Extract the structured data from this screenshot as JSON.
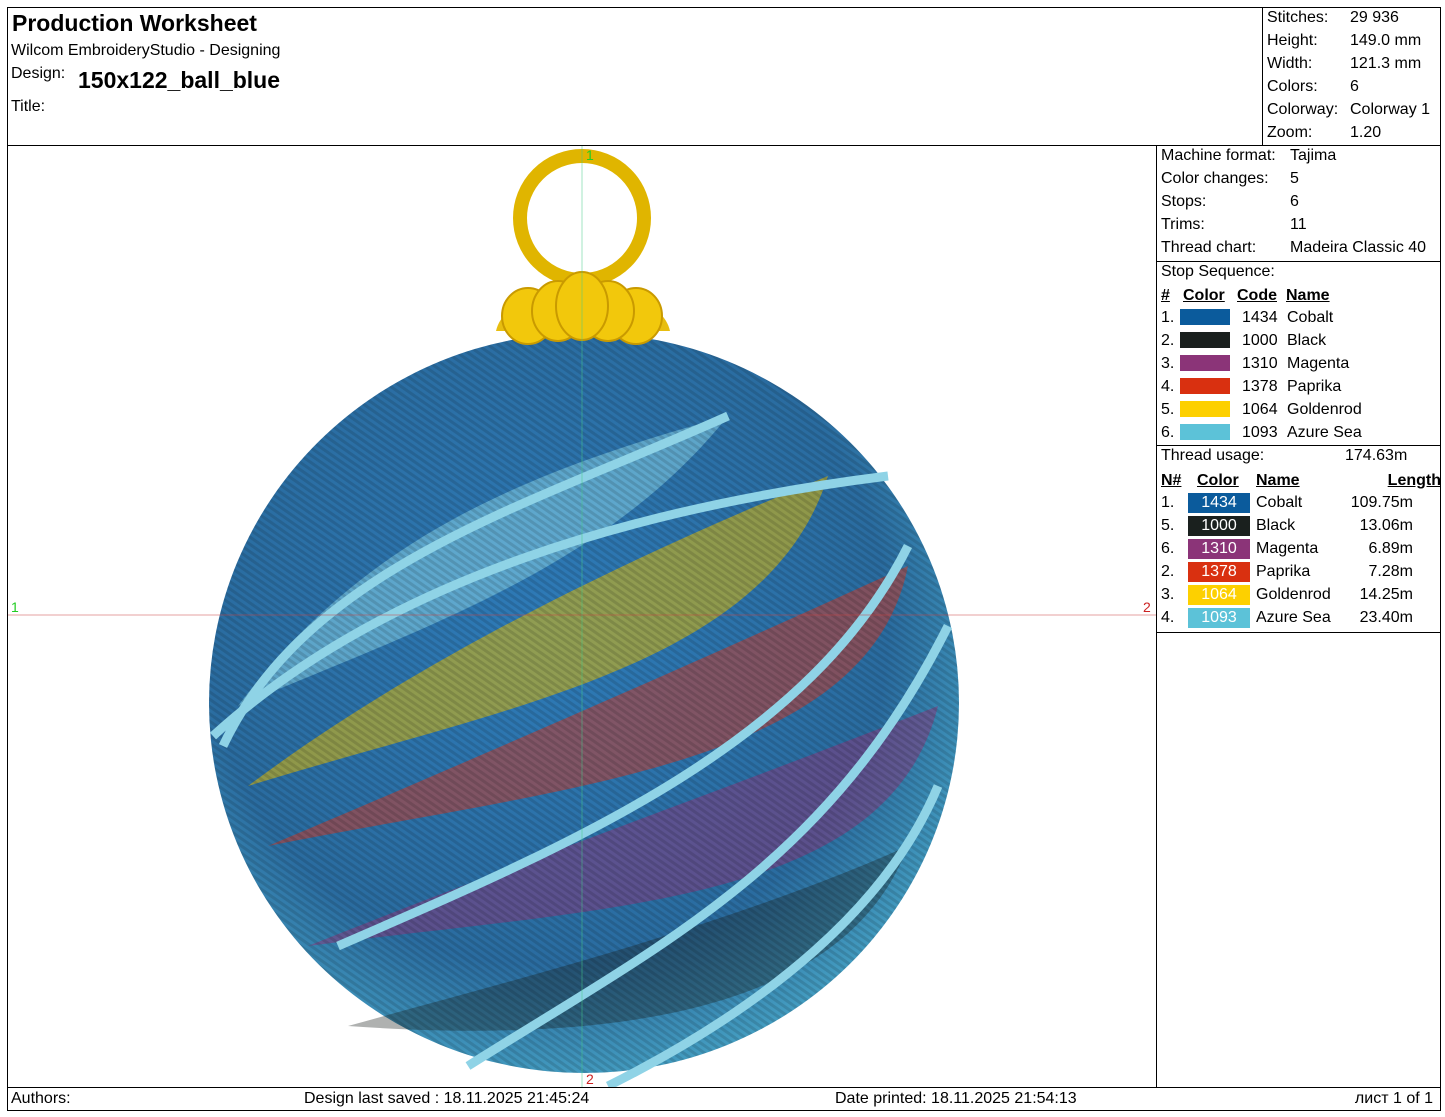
{
  "header": {
    "title": "Production Worksheet",
    "software": "Wilcom EmbroideryStudio - Designing",
    "design_label": "Design:",
    "design": "150x122_ball_blue",
    "title_label": "Title:"
  },
  "summary": {
    "rows": [
      [
        "Stitches:",
        "29 936"
      ],
      [
        "Height:",
        "149.0 mm"
      ],
      [
        "Width:",
        "121.3 mm"
      ],
      [
        "Colors:",
        "6"
      ],
      [
        "Colorway:",
        "Colorway 1"
      ],
      [
        "Zoom:",
        "1.20"
      ]
    ]
  },
  "machine": {
    "rows": [
      [
        "Machine format:",
        "Tajima"
      ],
      [
        "Color changes:",
        "5"
      ],
      [
        "Stops:",
        "6"
      ],
      [
        "Trims:",
        "11"
      ],
      [
        "Thread chart:",
        "Madeira Classic 40"
      ]
    ]
  },
  "stop_sequence": {
    "title": "Stop Sequence:",
    "columns": [
      "#",
      "Color",
      "Code",
      "Name"
    ],
    "rows": [
      {
        "num": "1.",
        "color": "#0b5b9c",
        "code": "1434",
        "name": "Cobalt"
      },
      {
        "num": "2.",
        "color": "#1a201e",
        "code": "1000",
        "name": "Black"
      },
      {
        "num": "3.",
        "color": "#8b3478",
        "code": "1310",
        "name": "Magenta"
      },
      {
        "num": "4.",
        "color": "#d93010",
        "code": "1378",
        "name": "Paprika"
      },
      {
        "num": "5.",
        "color": "#fdd000",
        "code": "1064",
        "name": "Goldenrod"
      },
      {
        "num": "6.",
        "color": "#5cc2d8",
        "code": "1093",
        "name": "Azure Sea"
      }
    ]
  },
  "thread_usage": {
    "label": "Thread usage:",
    "total": "174.63m",
    "columns": [
      "N#",
      "Color",
      "Name",
      "Length"
    ],
    "rows": [
      {
        "num": "1.",
        "color": "#0b5b9c",
        "code": "1434",
        "name": "Cobalt",
        "length": "109.75m"
      },
      {
        "num": "5.",
        "color": "#1a201e",
        "code": "1000",
        "name": "Black",
        "length": "13.06m"
      },
      {
        "num": "6.",
        "color": "#8b3478",
        "code": "1310",
        "name": "Magenta",
        "length": "6.89m"
      },
      {
        "num": "2.",
        "color": "#d93010",
        "code": "1378",
        "name": "Paprika",
        "length": "7.28m"
      },
      {
        "num": "3.",
        "color": "#fdd000",
        "code": "1064",
        "name": "Goldenrod",
        "length": "14.25m"
      },
      {
        "num": "4.",
        "color": "#5cc2d8",
        "code": "1093",
        "name": "Azure Sea",
        "length": "23.40m"
      }
    ]
  },
  "markers": {
    "top": "1",
    "left": "1",
    "right": "2",
    "bottom": "2"
  },
  "footer": {
    "authors": "Authors:",
    "saved": "Design last saved : 18.11.2025 21:45:24",
    "printed": "Date printed: 18.11.2025 21:54:13",
    "sheet": "лист 1 of 1"
  }
}
